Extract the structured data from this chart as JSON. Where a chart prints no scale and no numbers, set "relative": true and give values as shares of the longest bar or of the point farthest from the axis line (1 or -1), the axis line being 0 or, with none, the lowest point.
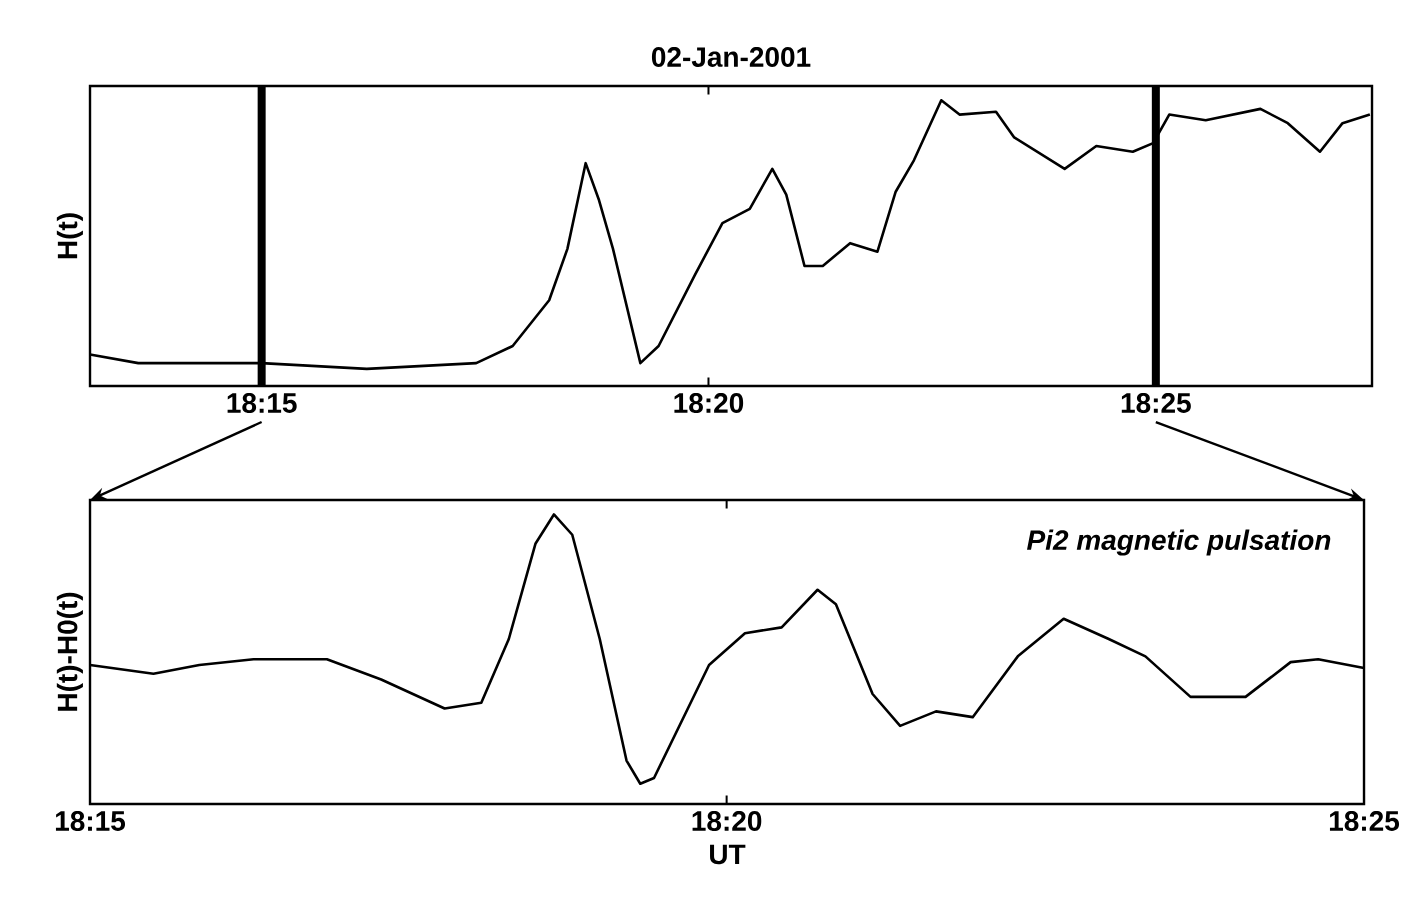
{
  "chart_data": [
    {
      "type": "line",
      "title": "02-Jan-2001",
      "ylabel": "H(t)",
      "relative": true,
      "color": "#000000",
      "x": [
        18.218,
        18.227,
        18.25,
        18.2696,
        18.29,
        18.2968,
        18.3036,
        18.307,
        18.3104,
        18.3129,
        18.3155,
        18.3206,
        18.324,
        18.3308,
        18.3359,
        18.341,
        18.3452,
        18.3478,
        18.3512,
        18.3546,
        18.3597,
        18.3648,
        18.3682,
        18.3716,
        18.3767,
        18.3801,
        18.3869,
        18.3903,
        18.3997,
        18.4056,
        18.4124,
        18.4162,
        18.4192,
        18.426,
        18.4362,
        18.4413,
        18.4473,
        18.4515,
        18.4566
      ],
      "values": [
        0.11,
        0.08,
        0.08,
        0.06,
        0.08,
        0.14,
        0.3,
        0.48,
        0.78,
        0.65,
        0.48,
        0.08,
        0.14,
        0.39,
        0.57,
        0.62,
        0.76,
        0.67,
        0.42,
        0.42,
        0.5,
        0.47,
        0.68,
        0.79,
        1,
        0.95,
        0.96,
        0.87,
        0.76,
        0.84,
        0.82,
        0.85,
        0.95,
        0.93,
        0.97,
        0.92,
        0.82,
        0.92,
        0.95
      ],
      "xlim": [
        18.218,
        18.457
      ],
      "xticks": [
        {
          "value": 18.25,
          "label": "18:15"
        },
        {
          "value": 18.3333,
          "label": "18:20"
        },
        {
          "value": 18.4167,
          "label": "18:25"
        }
      ],
      "ref_lines": [
        {
          "axis": "x",
          "value": 18.25,
          "color": "#000000"
        },
        {
          "axis": "x",
          "value": 18.4167,
          "color": "#000000"
        }
      ]
    },
    {
      "type": "line",
      "ylabel": "H(t)-H0(t)",
      "xlabel": "UT",
      "relative": true,
      "color": "#000000",
      "annotations": [
        "Pi2 magnetic pulsation"
      ],
      "x": [
        18.25,
        18.2583,
        18.2643,
        18.2714,
        18.281,
        18.2881,
        18.2964,
        18.3012,
        18.3048,
        18.3083,
        18.3107,
        18.3131,
        18.3167,
        18.3202,
        18.322,
        18.3238,
        18.331,
        18.3357,
        18.3405,
        18.3452,
        18.3476,
        18.3524,
        18.356,
        18.3607,
        18.3655,
        18.3714,
        18.3774,
        18.3833,
        18.3881,
        18.394,
        18.4012,
        18.4071,
        18.4107,
        18.4167
      ],
      "values": [
        0.48,
        0.45,
        0.48,
        0.5,
        0.5,
        0.43,
        0.33,
        0.35,
        0.57,
        0.9,
        1,
        0.93,
        0.57,
        0.15,
        0.07,
        0.09,
        0.48,
        0.59,
        0.61,
        0.74,
        0.69,
        0.38,
        0.27,
        0.32,
        0.3,
        0.51,
        0.64,
        0.57,
        0.51,
        0.37,
        0.37,
        0.49,
        0.5,
        0.47
      ],
      "xlim": [
        18.25,
        18.4167
      ],
      "xticks": [
        {
          "value": 18.25,
          "label": "18:15"
        },
        {
          "value": 18.3333,
          "label": "18:20"
        },
        {
          "value": 18.4167,
          "label": "18:25"
        }
      ]
    }
  ]
}
